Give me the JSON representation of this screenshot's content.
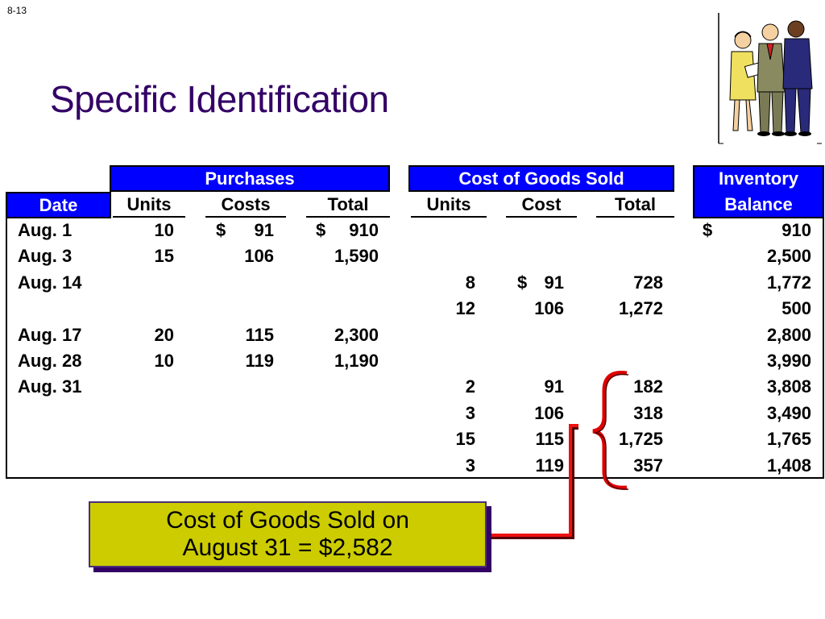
{
  "slide_number": "8-13",
  "title": "Specific Identification",
  "table": {
    "group_headers": {
      "purchases": "Purchases",
      "cogs": "Cost of Goods Sold",
      "inventory_line1": "Inventory",
      "inventory_line2": "Balance"
    },
    "column_headers": {
      "date": "Date",
      "p_units": "Units",
      "p_costs": "Costs",
      "p_total": "Total",
      "c_units": "Units",
      "c_cost": "Cost",
      "c_total": "Total"
    },
    "rows": [
      {
        "date": "Aug. 1",
        "p_units": "10",
        "p_cost_sym": "$",
        "p_cost": "91",
        "p_total_sym": "$",
        "p_total": "910",
        "c_units": "",
        "c_cost_sym": "",
        "c_cost": "",
        "c_total": "",
        "bal_sym": "$",
        "bal": "910"
      },
      {
        "date": "Aug. 3",
        "p_units": "15",
        "p_cost_sym": "",
        "p_cost": "106",
        "p_total_sym": "",
        "p_total": "1,590",
        "c_units": "",
        "c_cost_sym": "",
        "c_cost": "",
        "c_total": "",
        "bal_sym": "",
        "bal": "2,500"
      },
      {
        "date": "Aug. 14",
        "p_units": "",
        "p_cost_sym": "",
        "p_cost": "",
        "p_total_sym": "",
        "p_total": "",
        "c_units": "8",
        "c_cost_sym": "$",
        "c_cost": "91",
        "c_total": "728",
        "bal_sym": "",
        "bal": "1,772"
      },
      {
        "date": "",
        "p_units": "",
        "p_cost_sym": "",
        "p_cost": "",
        "p_total_sym": "",
        "p_total": "",
        "c_units": "12",
        "c_cost_sym": "",
        "c_cost": "106",
        "c_total": "1,272",
        "bal_sym": "",
        "bal": "500"
      },
      {
        "date": "Aug. 17",
        "p_units": "20",
        "p_cost_sym": "",
        "p_cost": "115",
        "p_total_sym": "",
        "p_total": "2,300",
        "c_units": "",
        "c_cost_sym": "",
        "c_cost": "",
        "c_total": "",
        "bal_sym": "",
        "bal": "2,800"
      },
      {
        "date": "Aug. 28",
        "p_units": "10",
        "p_cost_sym": "",
        "p_cost": "119",
        "p_total_sym": "",
        "p_total": "1,190",
        "c_units": "",
        "c_cost_sym": "",
        "c_cost": "",
        "c_total": "",
        "bal_sym": "",
        "bal": "3,990"
      },
      {
        "date": "Aug. 31",
        "p_units": "",
        "p_cost_sym": "",
        "p_cost": "",
        "p_total_sym": "",
        "p_total": "",
        "c_units": "2",
        "c_cost_sym": "",
        "c_cost": "91",
        "c_total": "182",
        "bal_sym": "",
        "bal": "3,808"
      },
      {
        "date": "",
        "p_units": "",
        "p_cost_sym": "",
        "p_cost": "",
        "p_total_sym": "",
        "p_total": "",
        "c_units": "3",
        "c_cost_sym": "",
        "c_cost": "106",
        "c_total": "318",
        "bal_sym": "",
        "bal": "3,490"
      },
      {
        "date": "",
        "p_units": "",
        "p_cost_sym": "",
        "p_cost": "",
        "p_total_sym": "",
        "p_total": "",
        "c_units": "15",
        "c_cost_sym": "",
        "c_cost": "115",
        "c_total": "1,725",
        "bal_sym": "",
        "bal": "1,765"
      },
      {
        "date": "",
        "p_units": "",
        "p_cost_sym": "",
        "p_cost": "",
        "p_total_sym": "",
        "p_total": "",
        "c_units": "3",
        "c_cost_sym": "",
        "c_cost": "119",
        "c_total": "357",
        "bal_sym": "",
        "bal": "1,408"
      }
    ]
  },
  "callout": {
    "line1": "Cost of Goods Sold on",
    "line2": "August 31 = $2,582"
  },
  "colors": {
    "title": "#330066",
    "header_fill": "#0000ff",
    "callout_fill": "#cccc00",
    "bracket": "#dd0000"
  },
  "icons": [
    "business-people-clipart-icon",
    "curly-brace-icon",
    "connector-line-icon"
  ]
}
